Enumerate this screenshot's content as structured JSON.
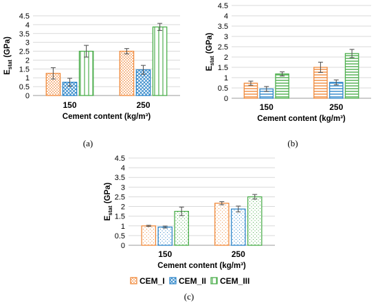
{
  "colors": {
    "CEM_I": "#f08a3c",
    "CEM_II": "#2e86c9",
    "CEM_III": "#4cae4c",
    "error_bar": "#555555",
    "grid": "#d9d9d9"
  },
  "legend": [
    {
      "label": "CEM_I"
    },
    {
      "label": "CEM_II"
    },
    {
      "label": "CEM_III"
    }
  ],
  "chart_data": [
    {
      "panel": "(a)",
      "type": "bar",
      "pattern": "dots",
      "categories": [
        "150",
        "250"
      ],
      "xlabel": "Cement content (kg/m³)",
      "ylabel_main": "E",
      "ylabel_sub": "stat",
      "ylabel_unit": " (GPa)",
      "ylim": [
        0,
        4.5
      ],
      "yticks": [
        "0",
        "0.5",
        "1",
        "1.5",
        "2",
        "2.5",
        "3",
        "3.5",
        "4",
        "4.5"
      ],
      "grid": true,
      "series": [
        {
          "name": "CEM_I",
          "values": [
            1.25,
            2.5
          ],
          "errors": [
            0.32,
            0.15
          ]
        },
        {
          "name": "CEM_II",
          "values": [
            0.75,
            1.45
          ],
          "errors": [
            0.22,
            0.25
          ]
        },
        {
          "name": "CEM_III",
          "values": [
            2.5,
            3.87
          ],
          "errors": [
            0.33,
            0.2
          ]
        }
      ]
    },
    {
      "panel": "(b)",
      "type": "bar",
      "pattern": "hlines",
      "categories": [
        "150",
        "250"
      ],
      "xlabel": "Cement content (kg/m³)",
      "ylabel_main": "E",
      "ylabel_sub": "stat",
      "ylabel_unit": " (GPa)",
      "ylim": [
        0,
        4.5
      ],
      "yticks": [
        "0",
        "0.5",
        "1",
        "1.5",
        "2",
        "2.5",
        "3",
        "3.5",
        "4",
        "4.5"
      ],
      "grid": true,
      "series": [
        {
          "name": "CEM_I",
          "values": [
            0.73,
            1.5
          ],
          "errors": [
            0.1,
            0.25
          ]
        },
        {
          "name": "CEM_II",
          "values": [
            0.45,
            0.77
          ],
          "errors": [
            0.12,
            0.12
          ]
        },
        {
          "name": "CEM_III",
          "values": [
            1.18,
            2.17
          ],
          "errors": [
            0.1,
            0.2
          ]
        }
      ]
    },
    {
      "panel": "(c)",
      "type": "bar",
      "pattern": "sparse-dots",
      "categories": [
        "150",
        "250"
      ],
      "xlabel": "Cement content (kg/m³)",
      "ylabel_main": "E",
      "ylabel_sub": "stat",
      "ylabel_unit": " (GPa)",
      "ylim": [
        0,
        4.5
      ],
      "yticks": [
        "0",
        "0.5",
        "1",
        "1.5",
        "2",
        "2.5",
        "3",
        "3.5",
        "4",
        "4.5"
      ],
      "grid": true,
      "legend_position": "bottom",
      "series": [
        {
          "name": "CEM_I",
          "values": [
            1.0,
            2.17
          ],
          "errors": [
            0.03,
            0.08
          ]
        },
        {
          "name": "CEM_II",
          "values": [
            0.94,
            1.87
          ],
          "errors": [
            0.05,
            0.15
          ]
        },
        {
          "name": "CEM_III",
          "values": [
            1.75,
            2.5
          ],
          "errors": [
            0.22,
            0.12
          ]
        }
      ]
    }
  ]
}
